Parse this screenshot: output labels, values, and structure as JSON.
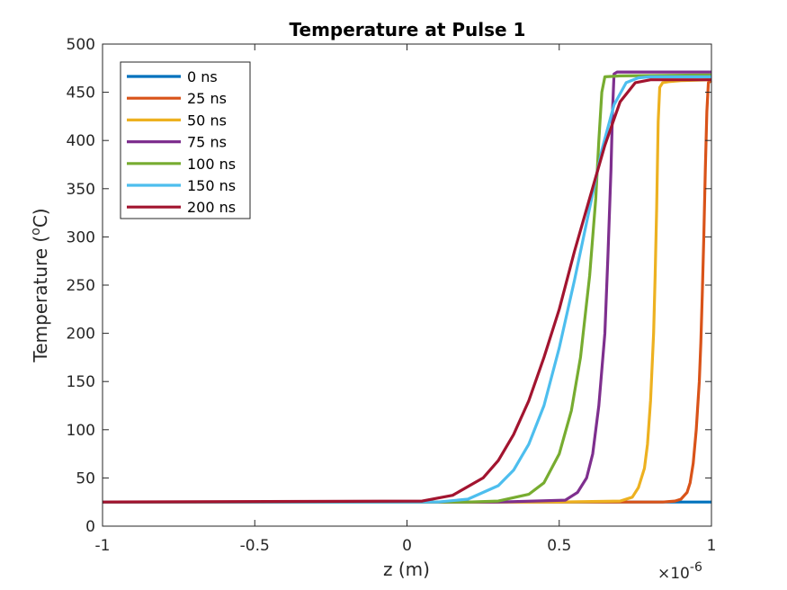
{
  "chart_data": {
    "type": "line",
    "title": "Temperature at Pulse 1",
    "xlabel": "z (m)",
    "ylabel_prefix": "Temperature (",
    "ylabel_superscript": "o",
    "ylabel_suffix": "C)",
    "x_exponent_base": "×10",
    "x_exponent_power": "-6",
    "xlim": [
      -1,
      1
    ],
    "ylim": [
      0,
      500
    ],
    "xticks": [
      -1,
      -0.5,
      0,
      0.5,
      1
    ],
    "xtick_labels": [
      "-1",
      "-0.5",
      "0",
      "0.5",
      "1"
    ],
    "yticks": [
      0,
      50,
      100,
      150,
      200,
      250,
      300,
      350,
      400,
      450,
      500
    ],
    "ytick_labels": [
      "0",
      "50",
      "100",
      "150",
      "200",
      "250",
      "300",
      "350",
      "400",
      "450",
      "500"
    ],
    "grid": false,
    "legend_position": "top-left",
    "series": [
      {
        "name": "0 ns",
        "color": "#0072BD",
        "x": [
          -1,
          0.97,
          0.98,
          1
        ],
        "y": [
          25,
          25,
          25,
          25
        ]
      },
      {
        "name": "25 ns",
        "color": "#D95319",
        "x": [
          -1,
          0.5,
          0.84,
          0.88,
          0.9,
          0.92,
          0.93,
          0.94,
          0.95,
          0.96,
          0.965,
          0.97,
          0.975,
          0.98,
          0.985,
          0.99,
          1
        ],
        "y": [
          25,
          25,
          25,
          26,
          28,
          35,
          45,
          65,
          100,
          150,
          190,
          240,
          300,
          370,
          430,
          460,
          462
        ]
      },
      {
        "name": "50 ns",
        "color": "#EDB120",
        "x": [
          -1,
          0.5,
          0.7,
          0.74,
          0.76,
          0.78,
          0.79,
          0.8,
          0.81,
          0.815,
          0.82,
          0.825,
          0.83,
          0.84,
          0.86,
          0.9,
          1
        ],
        "y": [
          25,
          25,
          26,
          30,
          40,
          60,
          85,
          130,
          200,
          260,
          330,
          420,
          455,
          460,
          461,
          462,
          463
        ]
      },
      {
        "name": "75 ns",
        "color": "#7E2F8E",
        "x": [
          -1,
          0.3,
          0.52,
          0.56,
          0.59,
          0.61,
          0.63,
          0.65,
          0.66,
          0.67,
          0.675,
          0.68,
          0.69,
          0.75,
          1
        ],
        "y": [
          25,
          25,
          27,
          35,
          50,
          75,
          125,
          200,
          280,
          370,
          430,
          469,
          471,
          471,
          471
        ]
      },
      {
        "name": "100 ns",
        "color": "#77AC30",
        "x": [
          -1,
          0.2,
          0.3,
          0.4,
          0.45,
          0.5,
          0.54,
          0.57,
          0.6,
          0.62,
          0.63,
          0.64,
          0.65,
          0.7,
          1
        ],
        "y": [
          25,
          25,
          26,
          33,
          45,
          75,
          120,
          175,
          260,
          340,
          400,
          450,
          466,
          467,
          468
        ]
      },
      {
        "name": "150 ns",
        "color": "#4DBEEE",
        "x": [
          -1,
          0.1,
          0.2,
          0.3,
          0.35,
          0.4,
          0.45,
          0.5,
          0.55,
          0.6,
          0.64,
          0.68,
          0.72,
          0.76,
          0.8,
          1
        ],
        "y": [
          25,
          25,
          28,
          42,
          58,
          85,
          125,
          185,
          255,
          330,
          390,
          437,
          460,
          465,
          466,
          466
        ]
      },
      {
        "name": "200 ns",
        "color": "#A2142F",
        "x": [
          -1,
          0.05,
          0.15,
          0.25,
          0.3,
          0.35,
          0.4,
          0.45,
          0.5,
          0.55,
          0.6,
          0.65,
          0.7,
          0.75,
          0.8,
          1
        ],
        "y": [
          25,
          26,
          32,
          50,
          68,
          95,
          130,
          175,
          225,
          285,
          340,
          395,
          440,
          460,
          463,
          463
        ]
      }
    ]
  }
}
